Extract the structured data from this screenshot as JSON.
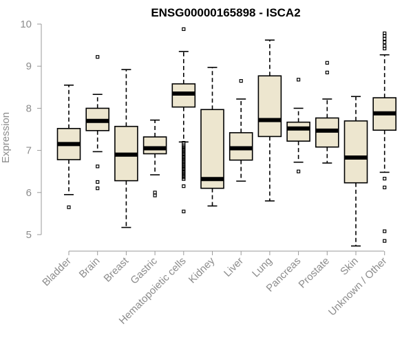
{
  "chart_data": {
    "type": "boxplot",
    "title": "ENSG00000165898 - ISCA2",
    "xlabel": "",
    "ylabel": "Expression",
    "ylim": [
      4.6,
      10.1
    ],
    "yticks": [
      5,
      6,
      7,
      8,
      9,
      10
    ],
    "box_fill": "#ede6cf",
    "categories": [
      "Bladder",
      "Brain",
      "Breast",
      "Gastric",
      "Hematopoietic cells",
      "Kidney",
      "Liver",
      "Lung",
      "Pancreas",
      "Prostate",
      "Skin",
      "Unknown / Other"
    ],
    "boxes": [
      {
        "name": "Bladder",
        "whisker_low": 5.95,
        "q1": 6.78,
        "median": 7.15,
        "q3": 7.52,
        "whisker_high": 8.55,
        "outliers": [
          5.65
        ]
      },
      {
        "name": "Brain",
        "whisker_low": 6.97,
        "q1": 7.47,
        "median": 7.7,
        "q3": 8.0,
        "whisker_high": 8.33,
        "outliers": [
          9.22,
          6.62,
          6.25,
          6.1
        ]
      },
      {
        "name": "Breast",
        "whisker_low": 5.17,
        "q1": 6.28,
        "median": 6.9,
        "q3": 7.57,
        "whisker_high": 8.92,
        "outliers": []
      },
      {
        "name": "Gastric",
        "whisker_low": 6.42,
        "q1": 6.92,
        "median": 7.05,
        "q3": 7.32,
        "whisker_high": 7.72,
        "outliers": [
          6.0,
          5.93
        ]
      },
      {
        "name": "Hematopoietic cells",
        "whisker_low": 7.2,
        "q1": 8.03,
        "median": 8.35,
        "q3": 8.58,
        "whisker_high": 9.35,
        "outliers": [
          9.88,
          7.18,
          7.12,
          7.08,
          7.04,
          7.0,
          6.96,
          6.92,
          6.88,
          6.84,
          6.8,
          6.76,
          6.72,
          6.68,
          6.64,
          6.6,
          6.56,
          6.52,
          6.48,
          6.44,
          6.4,
          6.36,
          6.32,
          6.15,
          5.55
        ]
      },
      {
        "name": "Kidney",
        "whisker_low": 5.68,
        "q1": 6.1,
        "median": 6.32,
        "q3": 7.97,
        "whisker_high": 8.97,
        "outliers": []
      },
      {
        "name": "Liver",
        "whisker_low": 6.27,
        "q1": 6.77,
        "median": 7.05,
        "q3": 7.42,
        "whisker_high": 8.22,
        "outliers": [
          8.65
        ]
      },
      {
        "name": "Lung",
        "whisker_low": 5.8,
        "q1": 7.33,
        "median": 7.72,
        "q3": 8.77,
        "whisker_high": 9.62,
        "outliers": []
      },
      {
        "name": "Pancreas",
        "whisker_low": 6.72,
        "q1": 7.22,
        "median": 7.52,
        "q3": 7.67,
        "whisker_high": 8.0,
        "outliers": [
          8.68,
          6.5
        ]
      },
      {
        "name": "Prostate",
        "whisker_low": 6.7,
        "q1": 7.08,
        "median": 7.47,
        "q3": 7.77,
        "whisker_high": 8.22,
        "outliers": [
          9.08,
          8.85
        ]
      },
      {
        "name": "Skin",
        "whisker_low": 4.73,
        "q1": 6.23,
        "median": 6.83,
        "q3": 7.7,
        "whisker_high": 8.28,
        "outliers": []
      },
      {
        "name": "Unknown / Other",
        "whisker_low": 6.48,
        "q1": 7.48,
        "median": 7.88,
        "q3": 8.25,
        "whisker_high": 9.27,
        "outliers": [
          9.78,
          9.72,
          9.65,
          9.57,
          9.48,
          9.42,
          6.33,
          6.12,
          5.08,
          4.85
        ]
      }
    ]
  }
}
